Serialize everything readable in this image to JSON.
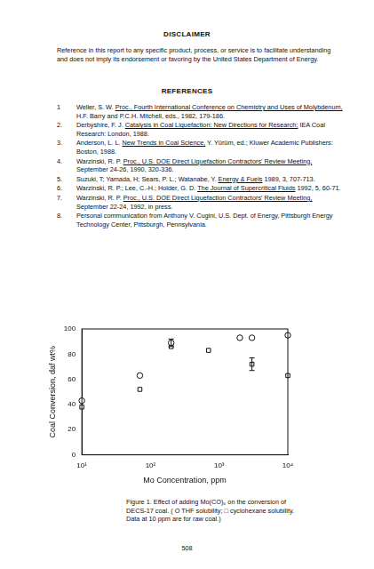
{
  "disclaimer": {
    "heading": "DISCLAIMER",
    "text": "Reference in this report to any specific product, process, or service is to facilitate understanding and does not imply its endorsement or favoring by the United States Department of Energy."
  },
  "references": {
    "heading": "REFERENCES",
    "items": [
      {
        "number": "1",
        "authors": "Weller, S. W.",
        "title": "Proc., Fourth International Conference on Chemistry and Uses of Molybdenum,",
        "rest": "H.F. Barry and P.C.H. Mitchell, eds., 1982, 179-186."
      },
      {
        "number": "2.",
        "authors": "Derbyshire, F. J.",
        "title": "Catalysis in Coal Liquefaction: New Directions for Research;",
        "rest": "IEA Coal Research: London, 1988."
      },
      {
        "number": "3.",
        "authors": "Anderson, L. L.",
        "title": "New Trends in Coal Science,",
        "rest": "Y. Yürüm, ed.; Kluwer Academic Publishers: Boston, 1988."
      },
      {
        "number": "4.",
        "authors": "Warzinski, R. P.",
        "title": "Proc., U.S. DOE Direct Liquefaction Contractors' Review Meeting,",
        "rest": "September 24-26, 1990, 320-336."
      },
      {
        "number": "5.",
        "authors": "Suzuki, T; Yamada, H; Sears, P. L.; Watanabe, Y.",
        "title": "Energy & Fuels",
        "rest": "1989, 3, 707-713."
      },
      {
        "number": "6.",
        "authors": "Warzinski, R. P.; Lee, C.-H.; Holder, G. D.",
        "title": "The Journal of Supercritical Fluids",
        "rest": "1992, 5, 60-71."
      },
      {
        "number": "7.",
        "authors": "Warzinski, R. P.",
        "title": "Proc., U.S. DOE Direct Liquefaction Contractors' Review Meeting,",
        "rest": "September 22-24, 1992, in press."
      },
      {
        "number": "8.",
        "text": "Personal communication from Anthony V. Cugini, U.S. Dept. of Energy, Pittsburgh Energy Technology Center, Pittsburgh, Pennsylvania."
      }
    ]
  },
  "chart_data": {
    "type": "scatter",
    "x_label": "Mo Concentration, ppm",
    "y_label": "Coal Conversion, daf wt%",
    "log": "x",
    "grid": false,
    "xlim": [
      10,
      10000
    ],
    "xticks": [
      {
        "value": 10,
        "label": "10¹"
      },
      {
        "value": 100,
        "label": "10²"
      },
      {
        "value": 1000,
        "label": "10³"
      },
      {
        "value": 10000,
        "label": "10⁴"
      }
    ],
    "ylim": [
      0,
      100
    ],
    "yticks": [
      0,
      20,
      40,
      60,
      80,
      100
    ],
    "series": [
      {
        "name": "THF solubility",
        "marker": "circle",
        "color": "#111111",
        "x": [
          10,
          70,
          200,
          2000,
          3000,
          10000
        ],
        "values": [
          43,
          63,
          89,
          93,
          93,
          95
        ],
        "errors": [
          null,
          null,
          3,
          null,
          null,
          null
        ]
      },
      {
        "name": "cyclohexane solubility",
        "marker": "square",
        "color": "#111111",
        "x": [
          10,
          70,
          200,
          700,
          3000,
          10000
        ],
        "values": [
          38,
          52,
          86,
          83,
          72,
          63
        ],
        "errors": [
          null,
          null,
          null,
          null,
          5,
          null
        ]
      }
    ]
  },
  "caption": "Figure 1. Effect of adding Mo(CO)₆ on the conversion of DECS-17 coal. ( O THF solubility; □ cyclohexane solubility. Data at 10 ppm are for raw coal.)",
  "page_number": "508"
}
